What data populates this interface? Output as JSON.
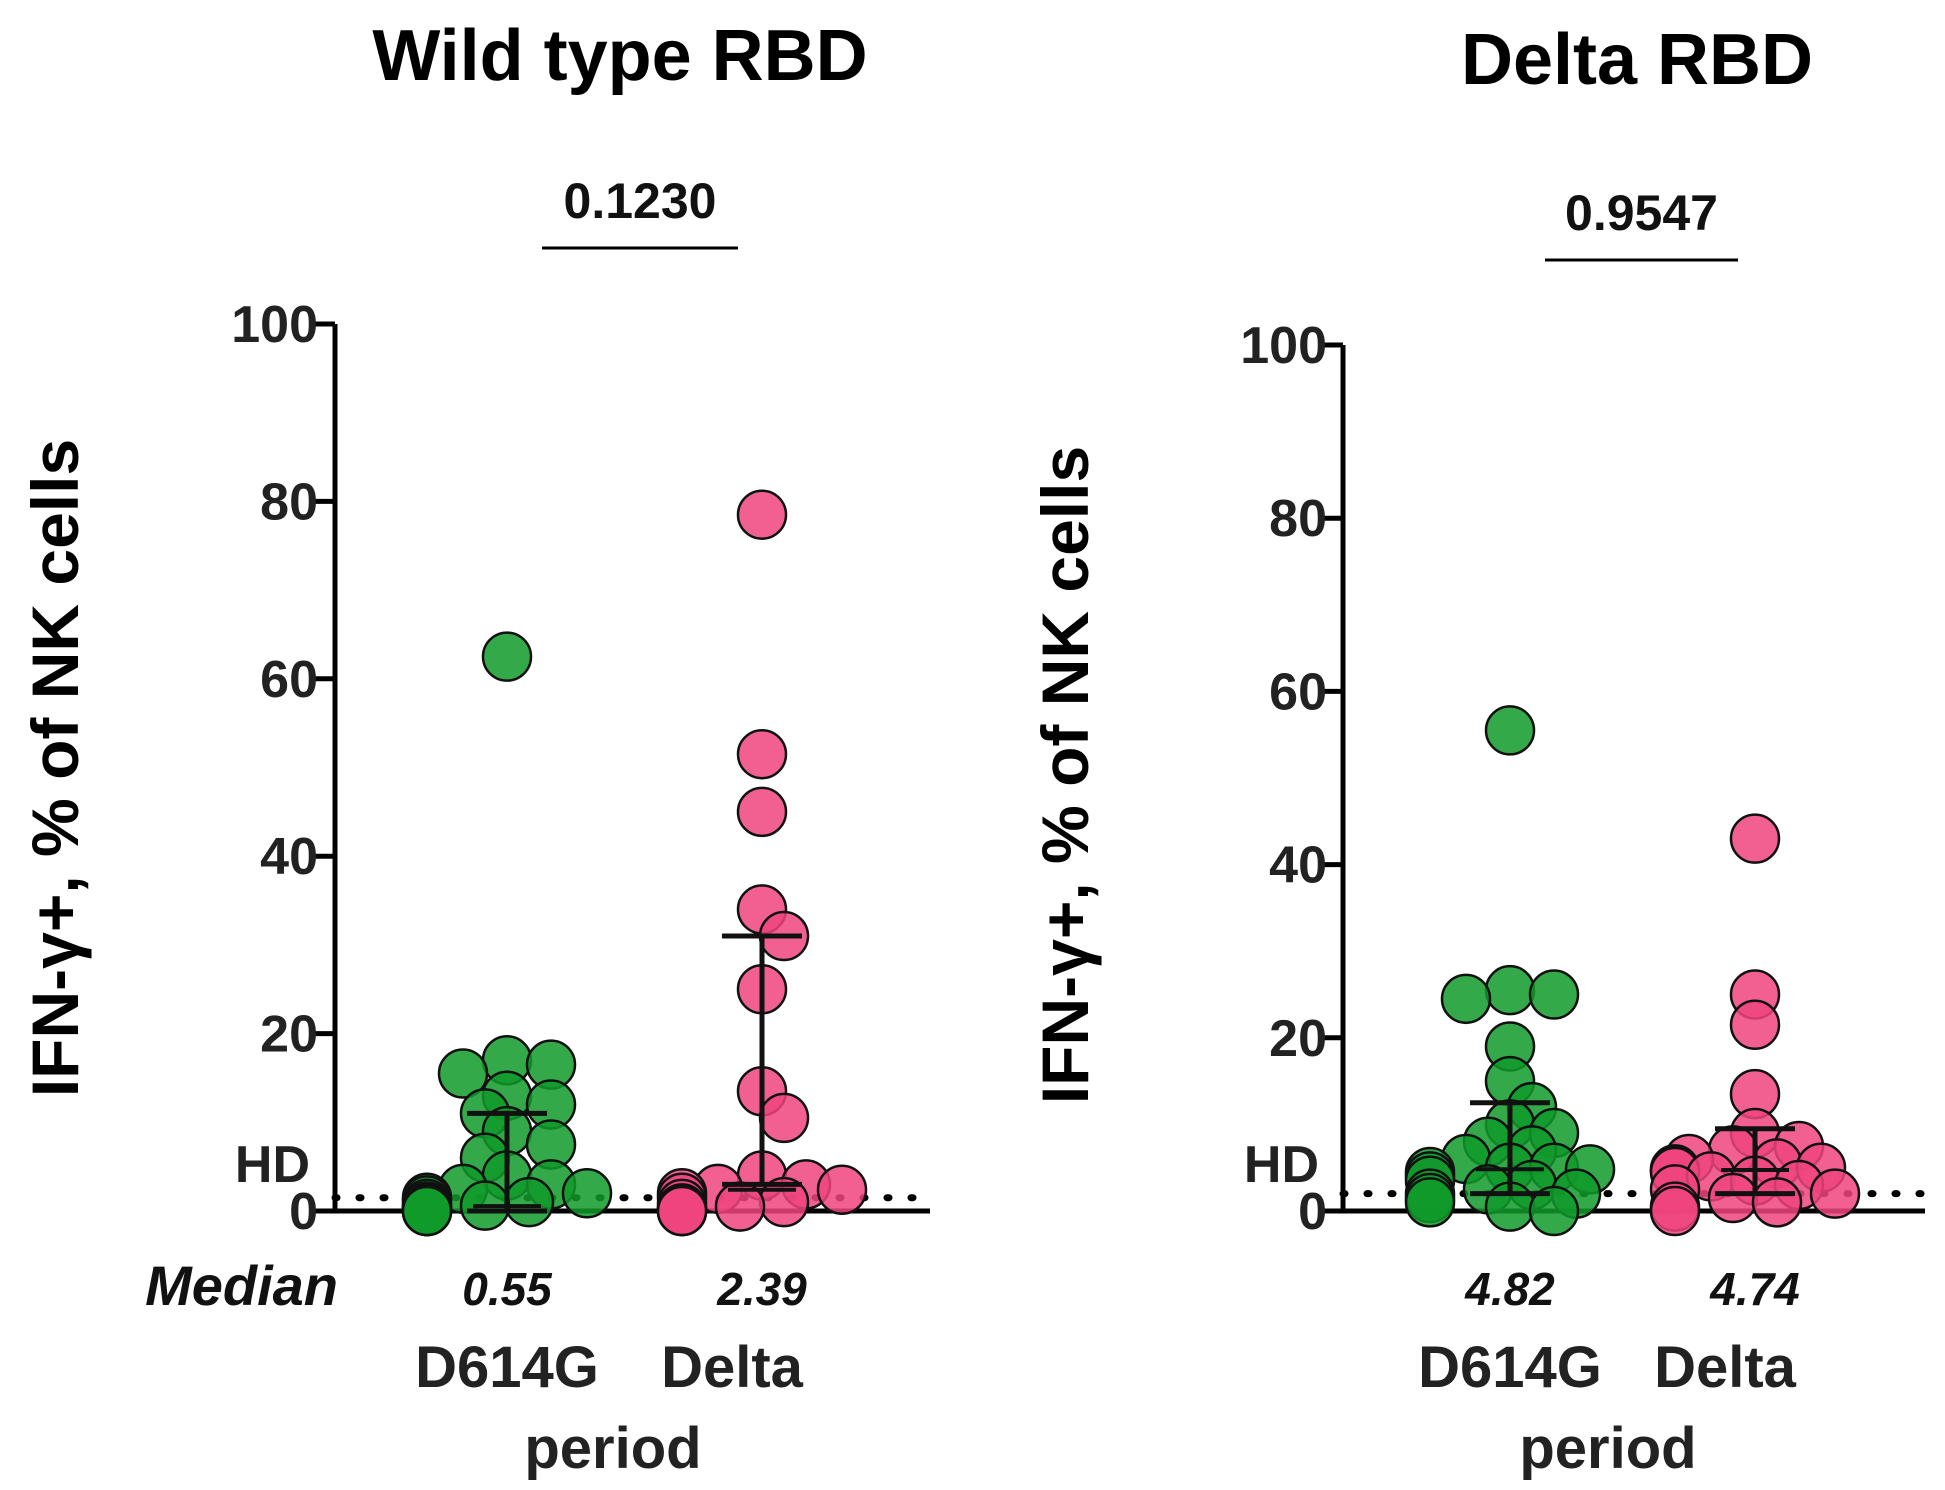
{
  "chart_data": [
    {
      "type": "scatter",
      "title": "Wild type RBD",
      "ylabel": "IFN-γ+, % of NK cells",
      "xlabel": "period",
      "ylim": [
        0,
        100
      ],
      "yticks": [
        "0",
        "20",
        "40",
        "60",
        "80",
        "100"
      ],
      "reference_line_label": "HD",
      "reference_line_value": 1.5,
      "p_value": "0.1230",
      "median_row_label": "Median",
      "categories": [
        "D614G",
        "Delta"
      ],
      "series": [
        {
          "color": "#119a2a",
          "median_label": "0.55",
          "median": 0.55,
          "iqr": [
            0,
            11
          ],
          "values": [
            62.5,
            17,
            16.5,
            15.5,
            13,
            12,
            11,
            9,
            7.5,
            6,
            4,
            3,
            2.5,
            2,
            1.5,
            1.2,
            1,
            0.8,
            0.6,
            0.5,
            0.4,
            0.3,
            0.2,
            0.1,
            0.1,
            0,
            0,
            0,
            0,
            0
          ]
        },
        {
          "color": "#f0447e",
          "median_label": "2.39",
          "median": 2.39,
          "iqr": [
            3,
            31
          ],
          "values": [
            78.5,
            51.5,
            45,
            34,
            31,
            25,
            13.5,
            10.5,
            4,
            3,
            2.5,
            2.4,
            2,
            1.5,
            1,
            0.8,
            0.5,
            0.3,
            0.2,
            0.1,
            0,
            0,
            0,
            0
          ]
        }
      ]
    },
    {
      "type": "scatter",
      "title": "Delta RBD",
      "ylabel": "IFN-γ+, % of NK cells",
      "xlabel": "period",
      "ylim": [
        0,
        100
      ],
      "yticks": [
        "0",
        "20",
        "40",
        "60",
        "80",
        "100"
      ],
      "reference_line_label": "HD",
      "reference_line_value": 2,
      "p_value": "0.9547",
      "categories": [
        "D614G",
        "Delta"
      ],
      "series": [
        {
          "color": "#119a2a",
          "median_label": "4.82",
          "median": 4.82,
          "iqr": [
            2,
            12.5
          ],
          "values": [
            55.5,
            25.5,
            25,
            24.5,
            19,
            15,
            12,
            10,
            9,
            8,
            7,
            6,
            5,
            5,
            4.8,
            4.5,
            4,
            3.5,
            3,
            2.5,
            2,
            2,
            1.5,
            1,
            0.5,
            0
          ]
        },
        {
          "color": "#f0447e",
          "median_label": "4.74",
          "median": 4.74,
          "iqr": [
            2,
            9.5
          ],
          "values": [
            43,
            25,
            21.5,
            13.5,
            9,
            7.5,
            7,
            6,
            5.5,
            5,
            4.8,
            4.7,
            4.5,
            4,
            3.5,
            3,
            2.5,
            2,
            1.5,
            1,
            0.5,
            0
          ]
        }
      ]
    }
  ]
}
